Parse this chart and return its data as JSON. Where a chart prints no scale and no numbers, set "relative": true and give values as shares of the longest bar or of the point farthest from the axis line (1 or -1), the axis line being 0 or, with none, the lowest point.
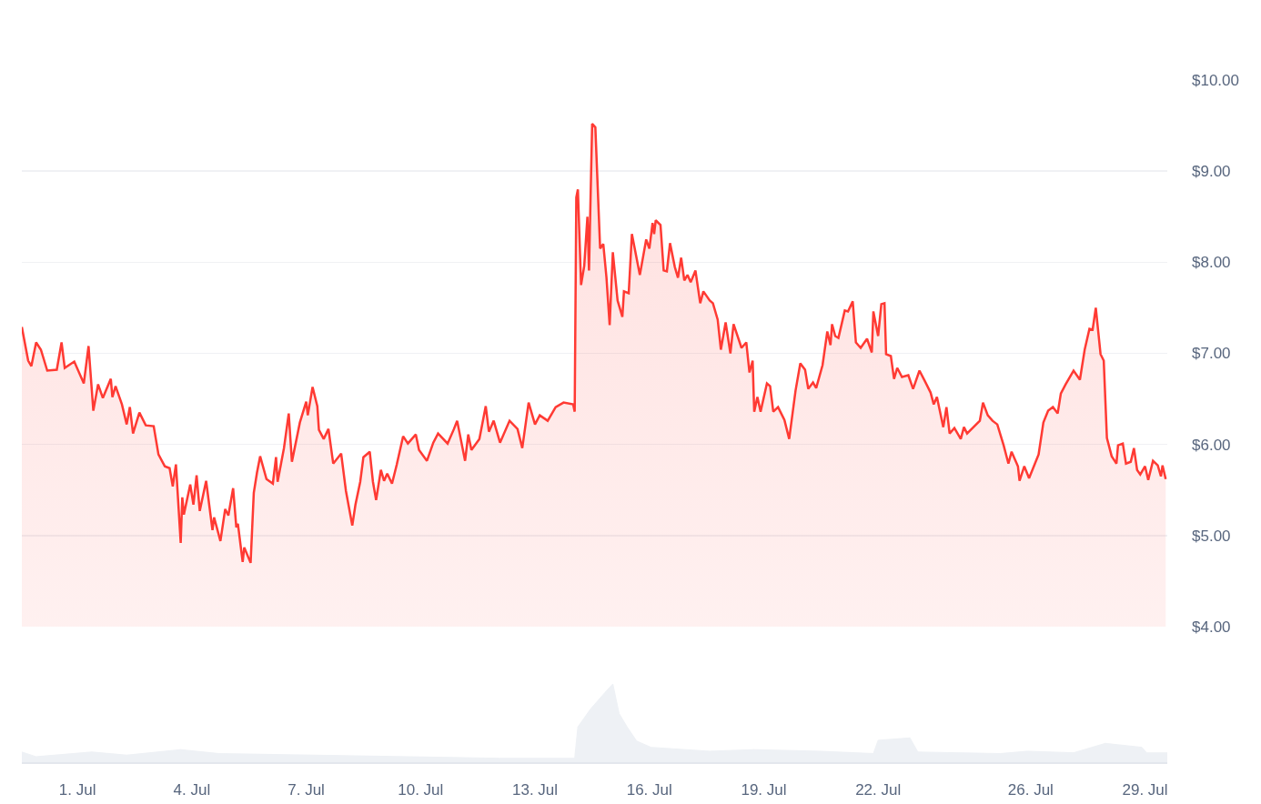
{
  "chart_data": [
    {
      "type": "area",
      "xlim": [
        "--06-29T13:00",
        "--07-29T14:00"
      ],
      "ylim": [
        4,
        10
      ],
      "yticks": [
        {
          "value": 4,
          "label": "$4.00"
        },
        {
          "value": 5,
          "label": "$5.00"
        },
        {
          "value": 6,
          "label": "$6.00"
        },
        {
          "value": 7,
          "label": "$7.00"
        },
        {
          "value": 8,
          "label": "$8.00"
        },
        {
          "value": 9,
          "label": "$9.00"
        },
        {
          "value": 10,
          "label": "$10.00"
        }
      ],
      "tick_labels": "y",
      "grid": "y",
      "marker": "none",
      "line_style": "solid",
      "x": [
        "--06-29T13:00",
        "--06-29T17:00",
        "--06-29T19:00",
        "--06-29T22:00",
        "--06-30T01:00",
        "--06-30T05:00",
        "--06-30T11:00",
        "--06-30T14:00",
        "--06-30T16:00",
        "--06-30T22:00",
        "--07-01T04:00",
        "--07-01T07:00",
        "--07-01T10:00",
        "--07-01T13:00",
        "--07-01T16:00",
        "--07-01T21:00",
        "--07-01T22:00",
        "--07-02T00:00",
        "--07-02T04:00",
        "--07-02T07:00",
        "--07-02T09:00",
        "--07-02T11:00",
        "--07-02T15:00",
        "--07-02T19:00",
        "--07-03T00:00",
        "--07-03T03:00",
        "--07-03T07:00",
        "--07-03T10:00",
        "--07-03T12:00",
        "--07-03T14:00",
        "--07-03T17:00",
        "--07-03T18:00",
        "--07-03T19:00",
        "--07-03T23:00",
        "--07-04T01:00",
        "--07-04T03:00",
        "--07-04T05:00",
        "--07-04T09:00",
        "--07-04T13:00",
        "--07-04T14:00",
        "--07-04T18:00",
        "--07-04T21:00",
        "--07-04T23:00",
        "--07-05T02:00",
        "--07-05T04:00",
        "--07-05T05:00",
        "--07-05T08:00",
        "--07-05T09:00",
        "--07-05T13:00",
        "--07-05T15:00",
        "--07-05T17:00",
        "--07-05T19:00",
        "--07-05T23:00",
        "--07-06T03:00",
        "--07-06T05:00",
        "--07-06T06:00",
        "--07-06T10:00",
        "--07-06T13:00",
        "--07-06T15:00",
        "--07-06T20:00",
        "--07-07T00:00",
        "--07-07T01:00",
        "--07-07T04:00",
        "--07-07T07:00",
        "--07-07T08:00",
        "--07-07T11:00",
        "--07-07T14:00",
        "--07-07T17:00",
        "--07-07T22:00",
        "--07-08T01:00",
        "--07-08T05:00",
        "--07-08T07:00",
        "--07-08T10:00",
        "--07-08T12:00",
        "--07-08T16:00",
        "--07-08T18:00",
        "--07-08T20:00",
        "--07-08T23:00",
        "--07-09T01:00",
        "--07-09T03:00",
        "--07-09T06:00",
        "--07-09T09:00",
        "--07-09T13:00",
        "--07-09T16:00",
        "--07-09T21:00",
        "--07-09T23:00",
        "--07-10T04:00",
        "--07-10T08:00",
        "--07-10T11:00",
        "--07-10T17:00",
        "--07-10T21:00",
        "--07-10T23:00",
        "--07-11T04:00",
        "--07-11T06:00",
        "--07-11T08:00",
        "--07-11T13:00",
        "--07-11T17:00",
        "--07-11T19:00",
        "--07-11T22:00",
        "--07-12T02:00",
        "--07-12T08:00",
        "--07-12T13:00",
        "--07-12T16:00",
        "--07-12T20:00",
        "--07-13T00:00",
        "--07-13T03:00",
        "--07-13T08:00",
        "--07-13T13:00",
        "--07-13T18:00",
        "--07-14T00:00",
        "--07-14T01:00",
        "--07-14T02:00",
        "--07-14T03:00",
        "--07-14T05:00",
        "--07-14T07:00",
        "--07-14T09:00",
        "--07-14T10:00",
        "--07-14T12:00",
        "--07-14T14:00",
        "--07-14T17:00",
        "--07-14T19:00",
        "--07-14T21:00",
        "--07-14T23:00",
        "--07-15T01:00",
        "--07-15T04:00",
        "--07-15T07:00",
        "--07-15T08:00",
        "--07-15T11:00",
        "--07-15T13:00",
        "--07-15T18:00",
        "--07-15T22:00",
        "--07-16T00:00",
        "--07-16T02:00",
        "--07-16T03:00",
        "--07-16T04:00",
        "--07-16T07:00",
        "--07-16T09:00",
        "--07-16T11:00",
        "--07-16T13:00",
        "--07-16T16:00",
        "--07-16T18:00",
        "--07-16T20:00",
        "--07-16T22:00",
        "--07-17T00:00",
        "--07-17T02:00",
        "--07-17T05:00",
        "--07-17T08:00",
        "--07-17T10:00",
        "--07-17T14:00",
        "--07-17T16:00",
        "--07-17T19:00",
        "--07-17T21:00",
        "--07-18T00:00",
        "--07-18T03:00",
        "--07-18T05:00",
        "--07-18T10:00",
        "--07-18T13:00",
        "--07-18T15:00",
        "--07-18T17:00",
        "--07-18T18:00",
        "--07-18T20:00",
        "--07-18T22:00",
        "--07-19T02:00",
        "--07-19T04:00",
        "--07-19T06:00",
        "--07-19T09:00",
        "--07-19T13:00",
        "--07-19T16:00",
        "--07-19T20:00",
        "--07-19T23:00",
        "--07-20T02:00",
        "--07-20T04:00",
        "--07-20T07:00",
        "--07-20T09:00",
        "--07-20T13:00",
        "--07-20T16:00",
        "--07-20T18:00",
        "--07-20T19:00",
        "--07-20T21:00",
        "--07-20T23:00",
        "--07-21T03:00",
        "--07-21T05:00",
        "--07-21T08:00",
        "--07-21T10:00",
        "--07-21T13:00",
        "--07-21T17:00",
        "--07-21T20:00",
        "--07-21T21:00",
        "--07-22T00:00",
        "--07-22T02:00",
        "--07-22T04:00",
        "--07-22T05:00",
        "--07-22T08:00",
        "--07-22T10:00",
        "--07-22T12:00",
        "--07-22T15:00",
        "--07-22T19:00",
        "--07-22T22:00",
        "--07-23T02:00",
        "--07-23T05:00",
        "--07-23T09:00",
        "--07-23T11:00",
        "--07-23T13:00",
        "--07-23T17:00",
        "--07-23T19:00",
        "--07-23T21:00",
        "--07-24T00:00",
        "--07-24T04:00",
        "--07-24T06:00",
        "--07-24T08:00",
        "--07-24T12:00",
        "--07-24T16:00",
        "--07-24T18:00",
        "--07-24T21:00",
        "--07-25T00:00",
        "--07-25T03:00",
        "--07-25T07:00",
        "--07-25T10:00",
        "--07-25T12:00",
        "--07-25T16:00",
        "--07-25T17:00",
        "--07-25T20:00",
        "--07-25T23:00",
        "--07-26T02:00",
        "--07-26T05:00",
        "--07-26T08:00",
        "--07-26T11:00",
        "--07-26T14:00",
        "--07-26T17:00",
        "--07-26T19:00",
        "--07-26T22:00",
        "--07-27T03:00",
        "--07-27T07:00",
        "--07-27T10:00",
        "--07-27T13:00",
        "--07-27T15:00",
        "--07-27T17:00",
        "--07-27T20:00",
        "--07-27T22:00",
        "--07-28T00:00",
        "--07-28T03:00",
        "--07-28T06:00",
        "--07-28T07:00",
        "--07-28T10:00",
        "--07-28T12:00",
        "--07-28T15:00",
        "--07-28T17:00",
        "--07-28T19:00",
        "--07-28T21:00",
        "--07-29T00:00",
        "--07-29T02:00",
        "--07-29T05:00",
        "--07-29T08:00",
        "--07-29T10:00",
        "--07-29T11:00",
        "--07-29T13:00"
      ],
      "series": [
        {
          "color": "#ff3a33",
          "values": [
            7.29,
            6.92,
            6.86,
            7.12,
            7.04,
            6.81,
            6.82,
            7.12,
            6.84,
            6.91,
            6.67,
            7.08,
            6.37,
            6.66,
            6.51,
            6.72,
            6.52,
            6.64,
            6.44,
            6.22,
            6.41,
            6.12,
            6.35,
            6.21,
            6.2,
            5.89,
            5.76,
            5.74,
            5.54,
            5.78,
            4.92,
            5.42,
            5.23,
            5.56,
            5.34,
            5.66,
            5.27,
            5.6,
            5.06,
            5.2,
            4.94,
            5.29,
            5.22,
            5.52,
            5.09,
            5.13,
            4.71,
            4.87,
            4.7,
            5.47,
            5.69,
            5.87,
            5.62,
            5.57,
            5.86,
            5.59,
            5.96,
            6.34,
            5.81,
            6.24,
            6.47,
            6.32,
            6.63,
            6.42,
            6.16,
            6.06,
            6.17,
            5.79,
            5.9,
            5.49,
            5.11,
            5.34,
            5.59,
            5.86,
            5.92,
            5.59,
            5.39,
            5.72,
            5.6,
            5.68,
            5.57,
            5.78,
            6.09,
            6.01,
            6.11,
            5.94,
            5.82,
            6.02,
            6.12,
            6.01,
            6.17,
            6.26,
            5.82,
            6.11,
            5.94,
            6.06,
            6.42,
            6.14,
            6.26,
            6.02,
            6.26,
            6.17,
            5.96,
            6.46,
            6.22,
            6.32,
            6.26,
            6.41,
            6.46,
            6.44,
            6.36,
            8.71,
            8.8,
            7.75,
            7.96,
            8.5,
            7.91,
            9.52,
            9.48,
            8.15,
            8.2,
            7.83,
            7.31,
            8.11,
            7.58,
            7.4,
            7.68,
            7.66,
            8.31,
            7.86,
            8.25,
            8.15,
            8.43,
            8.31,
            8.46,
            8.41,
            7.91,
            7.9,
            8.21,
            7.95,
            7.83,
            8.05,
            7.8,
            7.86,
            7.78,
            7.91,
            7.55,
            7.68,
            7.58,
            7.55,
            7.37,
            7.04,
            7.34,
            7.0,
            7.32,
            7.06,
            7.12,
            6.79,
            6.92,
            6.36,
            6.52,
            6.36,
            6.67,
            6.64,
            6.36,
            6.41,
            6.27,
            6.06,
            6.59,
            6.89,
            6.82,
            6.61,
            6.68,
            6.62,
            6.87,
            7.24,
            7.09,
            7.32,
            7.19,
            7.17,
            7.47,
            7.46,
            7.57,
            7.12,
            7.06,
            7.16,
            7.01,
            7.46,
            7.19,
            7.54,
            7.55,
            6.99,
            6.97,
            6.72,
            6.84,
            6.74,
            6.76,
            6.61,
            6.81,
            6.71,
            6.57,
            6.44,
            6.52,
            6.19,
            6.41,
            6.12,
            6.18,
            6.06,
            6.19,
            6.12,
            6.19,
            6.26,
            6.46,
            6.32,
            6.26,
            6.22,
            5.99,
            5.79,
            5.92,
            5.76,
            5.6,
            5.76,
            5.63,
            5.76,
            5.89,
            6.24,
            6.37,
            6.41,
            6.34,
            6.56,
            6.66,
            6.81,
            6.71,
            7.04,
            7.27,
            7.26,
            7.5,
            6.99,
            6.92,
            6.07,
            5.87,
            5.79,
            5.99,
            6.01,
            5.79,
            5.81,
            5.96,
            5.72,
            5.67,
            5.76,
            5.61,
            5.82,
            5.77,
            5.65,
            5.77,
            5.62
          ]
        }
      ]
    },
    {
      "type": "area",
      "relative": true,
      "xlim": [
        "--06-29T13:00",
        "--07-29T14:00"
      ],
      "xticks": [
        {
          "value": "--07-01",
          "label": "1. Jul"
        },
        {
          "value": "--07-04",
          "label": "4. Jul"
        },
        {
          "value": "--07-07",
          "label": "7. Jul"
        },
        {
          "value": "--07-10",
          "label": "10. Jul"
        },
        {
          "value": "--07-13",
          "label": "13. Jul"
        },
        {
          "value": "--07-16",
          "label": "16. Jul"
        },
        {
          "value": "--07-19",
          "label": "19. Jul"
        },
        {
          "value": "--07-22",
          "label": "22. Jul"
        },
        {
          "value": "--07-26",
          "label": "26. Jul"
        },
        {
          "value": "--07-29",
          "label": "29. Jul"
        }
      ],
      "tick_labels": "x",
      "grid": false,
      "x": [
        "--06-29T13:00",
        "--06-29T22:00",
        "--07-01T09:00",
        "--07-02T07:00",
        "--07-03T17:00",
        "--07-04T17:00",
        "--07-12T02:00",
        "--07-14T01:00",
        "--07-14T03:00",
        "--07-14T11:00",
        "--07-14T20:00",
        "--07-15T01:00",
        "--07-15T05:00",
        "--07-15T10:00",
        "--07-15T16:00",
        "--07-16T01:00",
        "--07-17T14:00",
        "--07-18T18:00",
        "--07-20T11:00",
        "--07-21T21:00",
        "--07-22T00:00",
        "--07-22T20:00",
        "--07-23T01:00",
        "--07-25T05:00",
        "--07-25T22:00",
        "--07-27T03:00",
        "--07-27T23:00",
        "--07-28T22:00",
        "--07-29T01:00",
        "--07-29T14:00"
      ],
      "series": [
        {
          "color": "#eef1f5",
          "values": [
            0.13,
            0.07,
            0.13,
            0.09,
            0.16,
            0.11,
            0.05,
            0.05,
            0.45,
            0.68,
            0.89,
            1,
            0.62,
            0.45,
            0.27,
            0.19,
            0.14,
            0.16,
            0.14,
            0.11,
            0.28,
            0.31,
            0.13,
            0.11,
            0.14,
            0.12,
            0.24,
            0.19,
            0.12,
            0.12
          ]
        }
      ]
    }
  ]
}
